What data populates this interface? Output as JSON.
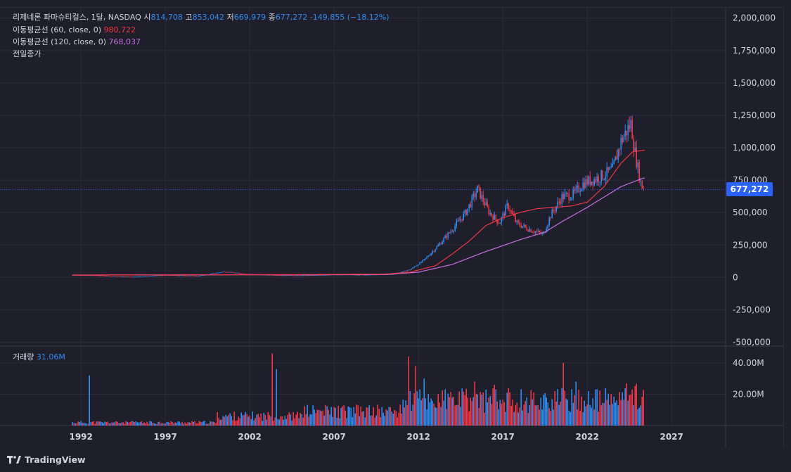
{
  "header": {
    "symbol": "리제네론 파마슈티컬스, 1달, NASDAQ",
    "open_label": "시",
    "open": "814,708",
    "high_label": "고",
    "high": "853,042",
    "low_label": "저",
    "low": "669,979",
    "close_label": "종",
    "close": "677,272",
    "change": "-149,855 (−18.12%)",
    "ma60_label": "이동평균선 (60, close, 0)",
    "ma60_value": "980,722",
    "ma120_label": "이동평균선 (120, close, 0)",
    "ma120_value": "768,037",
    "prev_close_label": "전일종가"
  },
  "volume_pane": {
    "label": "거래량",
    "value": "31.06M"
  },
  "last_price_tag": "677,272",
  "branding": "TradingView",
  "colors": {
    "up": "#2e8bf0",
    "down": "#f23645",
    "ma60": "#f23645",
    "ma120": "#c770e0",
    "price_line": "#2962ff",
    "background": "#1e1f2b",
    "grid": "#2a2e39"
  },
  "chart_data": {
    "type": "candlestick_with_volume",
    "price_axis": {
      "ticks": [
        -500000,
        -250000,
        0,
        250000,
        500000,
        750000,
        1000000,
        1250000,
        1500000,
        1750000,
        2000000
      ],
      "tick_labels": [
        "-500,000",
        "-250,000",
        "0",
        "250,000",
        "500,000",
        "750,000",
        "1,000,000",
        "1,250,000",
        "1,500,000",
        "1,750,000",
        "2,000,000"
      ],
      "range": [
        -530000,
        2080000
      ]
    },
    "volume_axis": {
      "tick_labels": [
        "20.00M",
        "40.00M"
      ],
      "ticks": [
        20,
        40
      ],
      "range": [
        0,
        48
      ]
    },
    "x_axis": {
      "tick_labels": [
        "1992",
        "1997",
        "2002",
        "2007",
        "2012",
        "2017",
        "2022",
        "2027"
      ],
      "ticks": [
        1992,
        1997,
        2002,
        2007,
        2012,
        2017,
        2022,
        2027
      ],
      "range": [
        1987.2,
        2030.2
      ]
    },
    "price_points": [
      [
        1991.5,
        20000
      ],
      [
        1993,
        15000
      ],
      [
        1995,
        5000
      ],
      [
        1997,
        18000
      ],
      [
        1999,
        12000
      ],
      [
        2000.5,
        45000
      ],
      [
        2001.5,
        30000
      ],
      [
        2003,
        20000
      ],
      [
        2005,
        15000
      ],
      [
        2007,
        22000
      ],
      [
        2009,
        20000
      ],
      [
        2010.5,
        25000
      ],
      [
        2011.5,
        60000
      ],
      [
        2012.3,
        130000
      ],
      [
        2013.2,
        250000
      ],
      [
        2014,
        370000
      ],
      [
        2014.8,
        500000
      ],
      [
        2015.5,
        680000
      ],
      [
        2016.2,
        500000
      ],
      [
        2016.8,
        420000
      ],
      [
        2017.3,
        560000
      ],
      [
        2017.8,
        420000
      ],
      [
        2018.4,
        380000
      ],
      [
        2019.4,
        330000
      ],
      [
        2019.8,
        470000
      ],
      [
        2020.5,
        620000
      ],
      [
        2021.2,
        640000
      ],
      [
        2021.8,
        730000
      ],
      [
        2022.5,
        760000
      ],
      [
        2023,
        790000
      ],
      [
        2023.5,
        830000
      ],
      [
        2024,
        1050000
      ],
      [
        2024.6,
        1190000
      ],
      [
        2024.8,
        980000
      ],
      [
        2025.2,
        710000
      ],
      [
        2025.4,
        677272
      ]
    ],
    "ma60_points": [
      [
        1991.5,
        18000
      ],
      [
        2000,
        20000
      ],
      [
        2005,
        22000
      ],
      [
        2010,
        25000
      ],
      [
        2011.5,
        40000
      ],
      [
        2013,
        90000
      ],
      [
        2014,
        180000
      ],
      [
        2015,
        280000
      ],
      [
        2016,
        400000
      ],
      [
        2017,
        460000
      ],
      [
        2018,
        500000
      ],
      [
        2019,
        530000
      ],
      [
        2020,
        540000
      ],
      [
        2021,
        550000
      ],
      [
        2022,
        580000
      ],
      [
        2023,
        700000
      ],
      [
        2024,
        880000
      ],
      [
        2024.7,
        970000
      ],
      [
        2025.4,
        980722
      ]
    ],
    "ma120_points": [
      [
        1991.5,
        18000
      ],
      [
        2005,
        20000
      ],
      [
        2010,
        22000
      ],
      [
        2012,
        40000
      ],
      [
        2014,
        100000
      ],
      [
        2016,
        200000
      ],
      [
        2018,
        290000
      ],
      [
        2019.5,
        350000
      ],
      [
        2020.5,
        430000
      ],
      [
        2022,
        540000
      ],
      [
        2023,
        620000
      ],
      [
        2024,
        700000
      ],
      [
        2025,
        750000
      ],
      [
        2025.4,
        768037
      ]
    ],
    "volume_bars": [
      [
        1992.5,
        32
      ],
      [
        2003.3,
        46
      ],
      [
        2003.6,
        36
      ],
      [
        2011.4,
        44
      ],
      [
        2011.8,
        38
      ],
      [
        2012.3,
        30
      ],
      [
        2015.3,
        28
      ],
      [
        2016.5,
        26
      ],
      [
        2020.6,
        40
      ],
      [
        2021.3,
        28
      ],
      [
        2024.7,
        23
      ],
      [
        2025.4,
        31.06
      ]
    ]
  }
}
